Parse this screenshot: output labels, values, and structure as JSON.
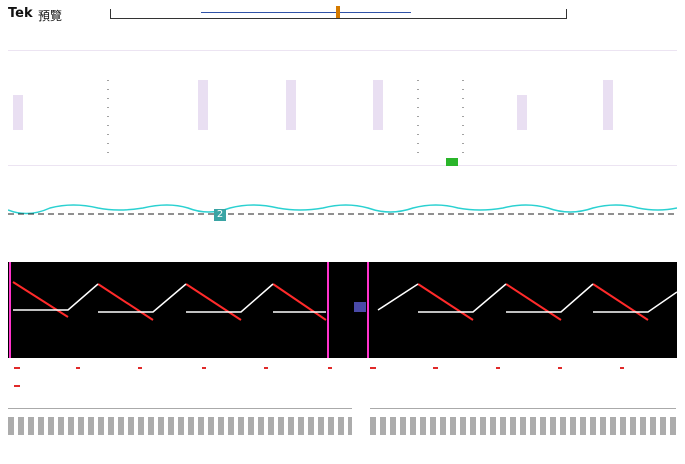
{
  "header": {
    "brand": "Tek",
    "status": "預覽"
  },
  "channels": {
    "ch2_label": "2"
  },
  "colors": {
    "upper_trace": "#2bd1d1",
    "lower_bg": "#000000",
    "lower_trace_red": "#ff2a2a",
    "lower_trace_magenta": "#ff33cc",
    "lower_trace_white": "#ffffff",
    "trigger": "#2ab52a",
    "timebar_marker": "#d47a00"
  },
  "icons": {
    "trigger_badge": "trigger-icon"
  }
}
